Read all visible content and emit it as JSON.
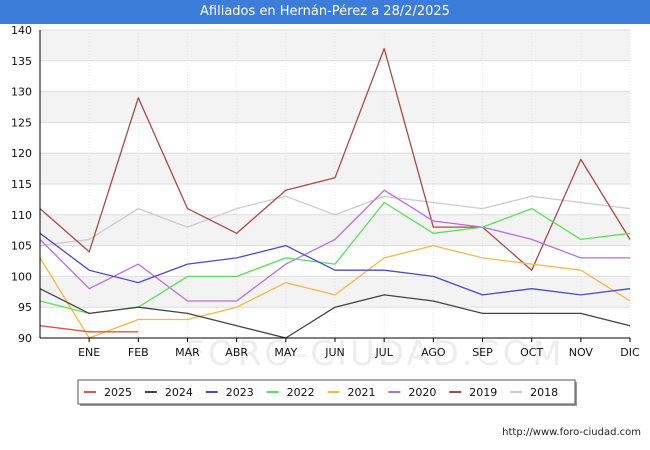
{
  "page": {
    "title": "Afiliados en Hernán-Pérez a 28/2/2025",
    "footer_url": "http://www.foro-ciudad.com",
    "watermark": "FORO-CIUDAD.COM"
  },
  "chart_data": {
    "type": "line",
    "title": "Afiliados en Hernán-Pérez a 28/2/2025",
    "xlabel": "",
    "ylabel": "",
    "ylim": [
      90,
      140
    ],
    "yticks": [
      90,
      95,
      100,
      105,
      110,
      115,
      120,
      125,
      130,
      135,
      140
    ],
    "categories": [
      "",
      "ENE",
      "FEB",
      "MAR",
      "ABR",
      "MAY",
      "JUN",
      "JUL",
      "AGO",
      "SEP",
      "OCT",
      "NOV",
      "DIC"
    ],
    "grid": true,
    "legend_position": "bottom",
    "series": [
      {
        "name": "2025",
        "color": "#e8504a",
        "values": [
          92,
          91,
          91,
          null,
          null,
          null,
          null,
          null,
          null,
          null,
          null,
          null,
          null
        ]
      },
      {
        "name": "2024",
        "color": "#444444",
        "values": [
          98,
          94,
          95,
          94,
          92,
          90,
          95,
          97,
          96,
          94,
          94,
          94,
          92
        ]
      },
      {
        "name": "2023",
        "color": "#4a4ad8",
        "values": [
          107,
          101,
          99,
          102,
          103,
          105,
          101,
          101,
          100,
          97,
          98,
          97,
          98
        ]
      },
      {
        "name": "2022",
        "color": "#5ae05a",
        "values": [
          96,
          94,
          95,
          100,
          100,
          103,
          102,
          112,
          107,
          108,
          111,
          106,
          107
        ]
      },
      {
        "name": "2021",
        "color": "#f5b942",
        "values": [
          103,
          90,
          93,
          93,
          95,
          99,
          97,
          103,
          105,
          103,
          102,
          101,
          96
        ]
      },
      {
        "name": "2020",
        "color": "#b76fe0",
        "values": [
          106,
          98,
          102,
          96,
          96,
          102,
          106,
          114,
          109,
          108,
          106,
          103,
          103
        ]
      },
      {
        "name": "2019",
        "color": "#a84a4a",
        "values": [
          111,
          104,
          129,
          111,
          107,
          114,
          116,
          137,
          108,
          108,
          101,
          119,
          106
        ]
      },
      {
        "name": "2018",
        "color": "#cccccc",
        "values": [
          105,
          106,
          111,
          108,
          111,
          113,
          110,
          113,
          112,
          111,
          113,
          112,
          111
        ]
      }
    ]
  }
}
